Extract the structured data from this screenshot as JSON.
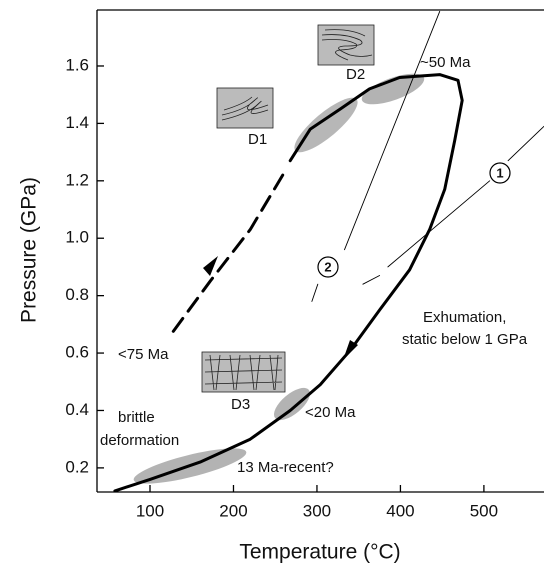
{
  "chart_data": {
    "type": "line",
    "x_label": "Temperature (°C)",
    "y_label": "Pressure (GPa)",
    "xlim": [
      36.5,
      572
    ],
    "ylim": [
      0.116,
      1.795
    ],
    "xticks": [
      100,
      200,
      300,
      400,
      500
    ],
    "yticks": [
      0.2,
      0.4,
      0.6,
      0.8,
      {
        "value": 1,
        "label": "1.0"
      },
      1.2,
      1.4,
      1.6
    ],
    "color": "#000000",
    "series": [
      {
        "style": "solid",
        "x": [
          58,
          100,
          160,
          220,
          268,
          304,
          340,
          375,
          411,
          435,
          453,
          465,
          474,
          469,
          447,
          399,
          363,
          328,
          292,
          268
        ],
        "values": [
          0.12,
          0.16,
          0.22,
          0.3,
          0.4,
          0.49,
          0.61,
          0.75,
          0.89,
          1.03,
          1.17,
          1.34,
          1.48,
          1.55,
          1.57,
          1.56,
          1.52,
          1.45,
          1.38,
          1.27
        ]
      },
      {
        "style": "dashed",
        "x": [
          259,
          220,
          172,
          124
        ],
        "values": [
          1.22,
          1.03,
          0.85,
          0.66
        ]
      },
      {
        "style": "thin",
        "name": "1",
        "x": [
          355,
          375,
          null,
          385,
          507,
          null,
          529,
          572
        ],
        "values": [
          0.84,
          0.87,
          null,
          0.9,
          1.2,
          null,
          1.27,
          1.39
        ]
      },
      {
        "style": "thin",
        "name": "2",
        "x": [
          447,
          333,
          null,
          301,
          294
        ],
        "values": [
          1.79,
          0.96,
          null,
          0.84,
          0.78
        ]
      }
    ],
    "annotations": [
      "~50 Ma",
      "D2",
      "D1",
      "<75 Ma",
      "Exhumation,",
      "static below 1 GPa",
      "D3",
      "<20 Ma",
      "brittle",
      "deformation",
      "13 Ma-recent?"
    ]
  }
}
